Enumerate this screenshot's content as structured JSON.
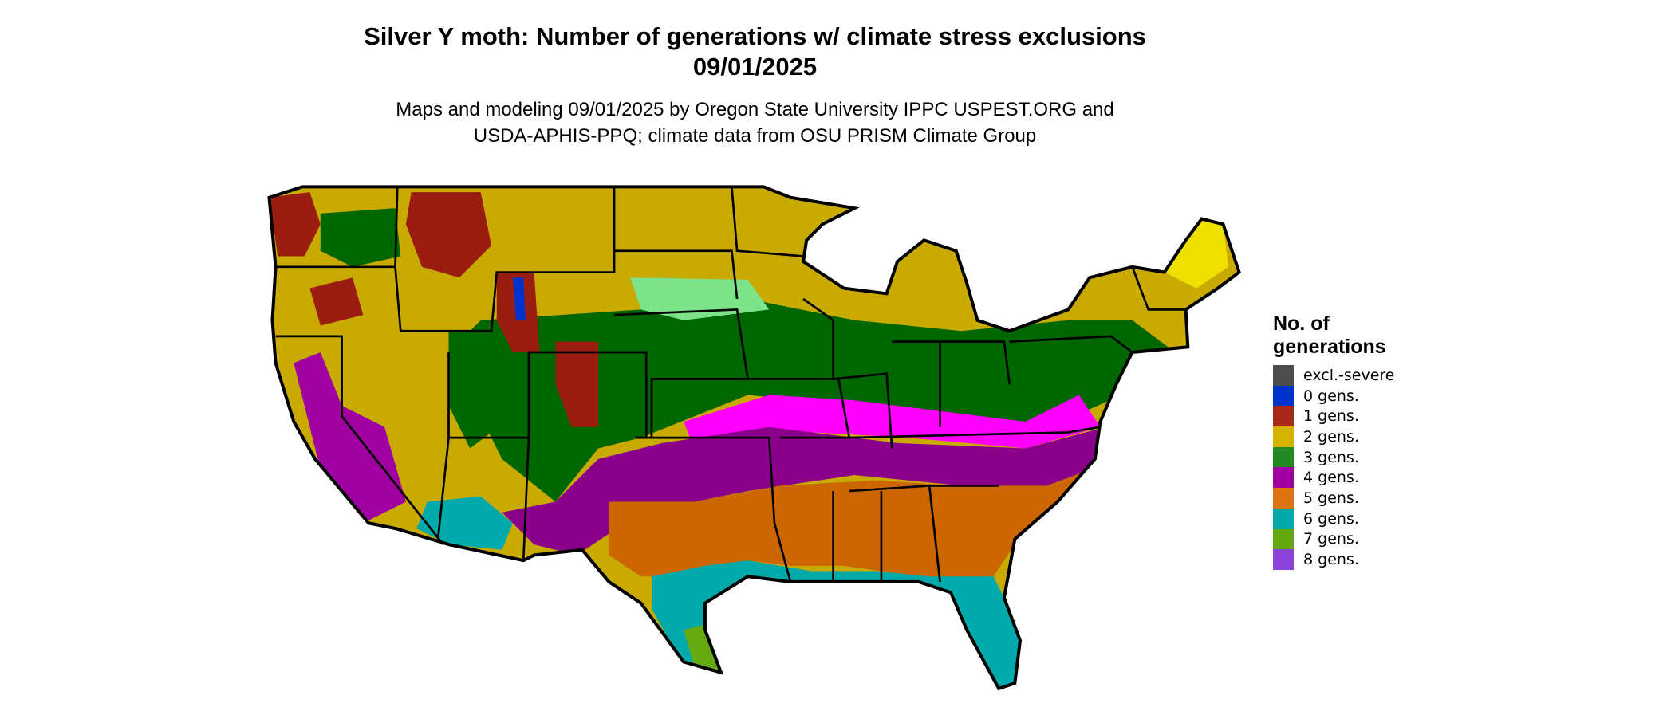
{
  "title": {
    "line1": "Silver Y moth: Number of generations w/ climate stress exclusions",
    "line2": "09/01/2025"
  },
  "subtitle": {
    "line1": "Maps and modeling 09/01/2025 by Oregon State University IPPC USPEST.ORG and",
    "line2": "USDA-APHIS-PPQ; climate data from OSU PRISM Climate Group"
  },
  "legend": {
    "title_line1": "No. of",
    "title_line2": "generations",
    "items": [
      {
        "label": "excl.-severe",
        "color": "#4d4d4d"
      },
      {
        "label": "0 gens.",
        "color": "#0033cc"
      },
      {
        "label": "1 gens.",
        "color": "#a8281a"
      },
      {
        "label": "2 gens.",
        "color": "#d4b400"
      },
      {
        "label": "3 gens.",
        "color": "#238a23"
      },
      {
        "label": "4 gens.",
        "color": "#a000a0"
      },
      {
        "label": "5 gens.",
        "color": "#dc7412"
      },
      {
        "label": "6 gens.",
        "color": "#00a8a8"
      },
      {
        "label": "7 gens.",
        "color": "#62a80e"
      },
      {
        "label": "8 gens.",
        "color": "#8a42d8"
      }
    ]
  }
}
